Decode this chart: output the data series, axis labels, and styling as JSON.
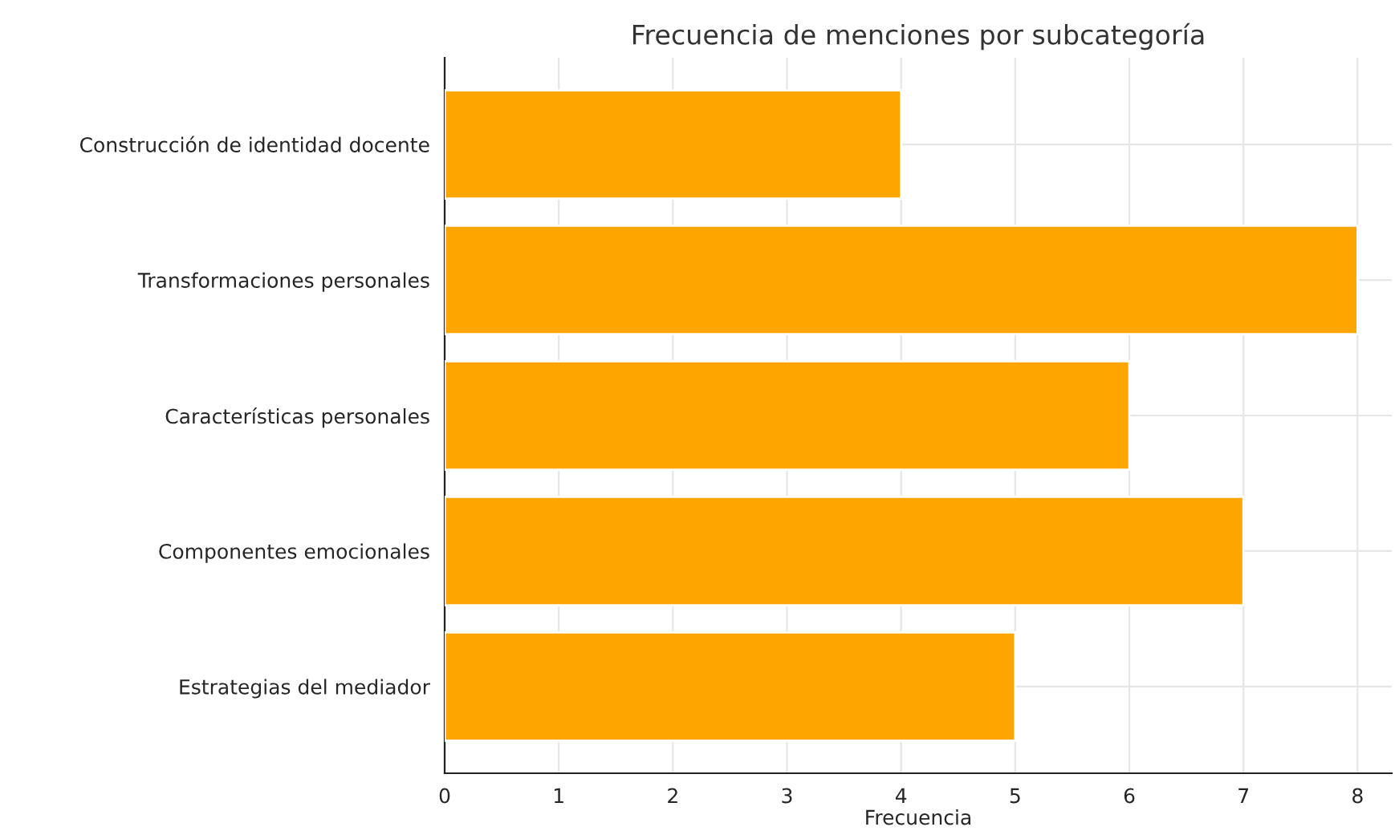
{
  "chart_data": {
    "type": "bar",
    "orientation": "horizontal",
    "title": "Frecuencia de menciones por subcategoría",
    "xlabel": "Frecuencia",
    "categories": [
      "Construcción de identidad docente",
      "Transformaciones personales",
      "Características personales",
      "Componentes emocionales",
      "Estrategias del mediador"
    ],
    "values": [
      4,
      8,
      6,
      7,
      5
    ],
    "color": "#ffa500",
    "xlim": [
      0,
      8.3
    ],
    "xticks": [
      0,
      1,
      2,
      3,
      4,
      5,
      6,
      7,
      8
    ],
    "grid": true
  }
}
